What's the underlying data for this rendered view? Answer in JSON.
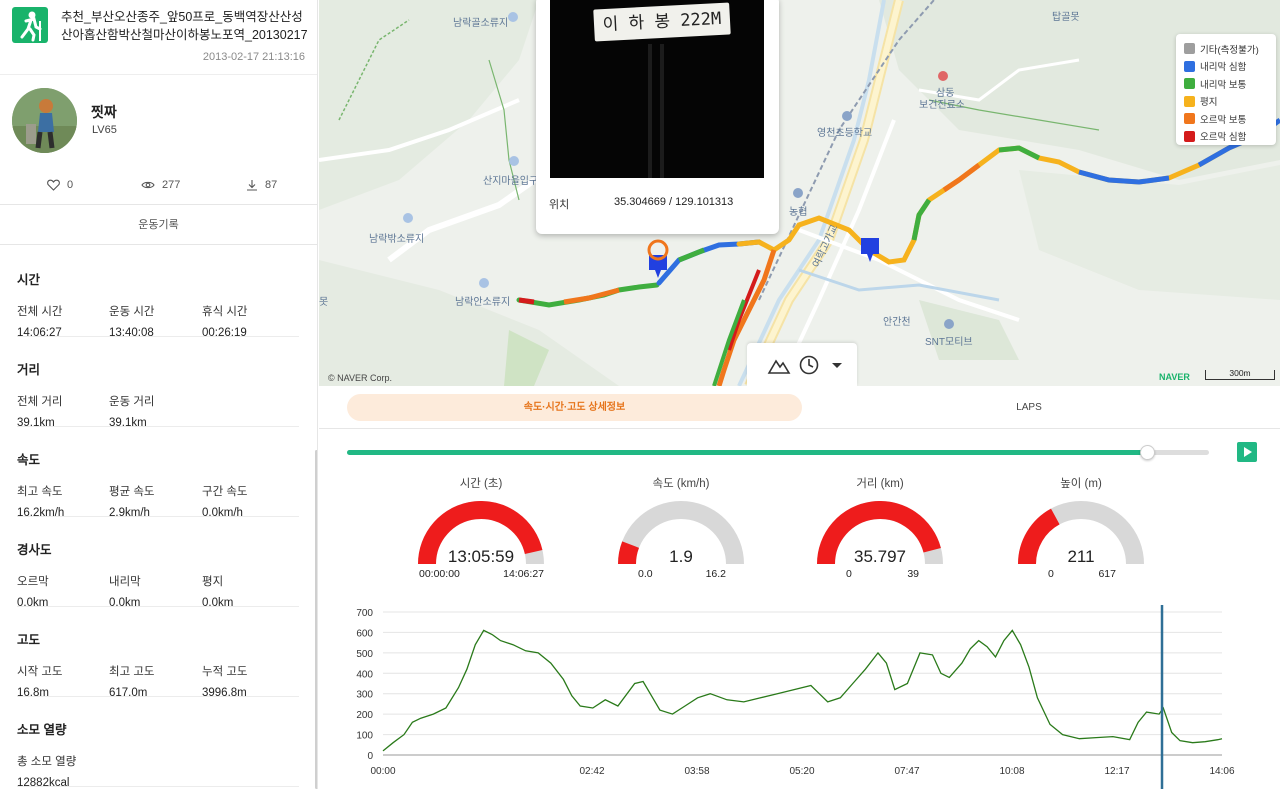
{
  "header": {
    "title": "추천_부산오산종주_앞50프로_동백역장산산성산아홉산함박산철마산이하봉노포역_20130217",
    "date": "2013-02-17 21:13:16"
  },
  "profile": {
    "name": "찟짜",
    "level": "LV65"
  },
  "stats": {
    "likes": "0",
    "views": "277",
    "downloads": "87"
  },
  "record_tab": "운동기록",
  "sections": [
    {
      "title": "시간",
      "items": [
        {
          "k": "전체 시간",
          "v": "14:06:27"
        },
        {
          "k": "운동 시간",
          "v": "13:40:08"
        },
        {
          "k": "휴식 시간",
          "v": "00:26:19"
        }
      ]
    },
    {
      "title": "거리",
      "items": [
        {
          "k": "전체 거리",
          "v": "39.1km"
        },
        {
          "k": "운동 거리",
          "v": "39.1km"
        }
      ]
    },
    {
      "title": "속도",
      "items": [
        {
          "k": "최고 속도",
          "v": "16.2km/h"
        },
        {
          "k": "평균 속도",
          "v": "2.9km/h"
        },
        {
          "k": "구간 속도",
          "v": "0.0km/h"
        }
      ]
    },
    {
      "title": "경사도",
      "items": [
        {
          "k": "오르막",
          "v": "0.0km"
        },
        {
          "k": "내리막",
          "v": "0.0km"
        },
        {
          "k": "평지",
          "v": "0.0km"
        }
      ]
    },
    {
      "title": "고도",
      "items": [
        {
          "k": "시작 고도",
          "v": "16.8m"
        },
        {
          "k": "최고 고도",
          "v": "617.0m"
        },
        {
          "k": "누적 고도",
          "v": "3996.8m"
        }
      ]
    },
    {
      "title": "소모 열량",
      "items": [
        {
          "k": "총 소모 열량",
          "v": "12882kcal"
        }
      ]
    }
  ],
  "map": {
    "popup": {
      "sign_text": "이 하 봉 222M",
      "loc_label": "위치",
      "loc_value": "35.304669 / 129.101313"
    },
    "labels": [
      {
        "text": "남락골소류지"
      },
      {
        "text": "산지마을입구"
      },
      {
        "text": "남락밖소류지"
      },
      {
        "text": "남락안소류지"
      },
      {
        "text": "영천초등학교"
      },
      {
        "text": "농협"
      },
      {
        "text": "삼동"
      },
      {
        "text": "보건진료소"
      },
      {
        "text": "안간천"
      },
      {
        "text": "SNT모티브"
      },
      {
        "text": "탑골못"
      },
      {
        "text": "여락고가교"
      },
      {
        "text": "못"
      }
    ],
    "legend": [
      {
        "label": "기타(측정불가)",
        "color": "#9e9e9e"
      },
      {
        "label": "내리막 심함",
        "color": "#2f6fe0"
      },
      {
        "label": "내리막 보통",
        "color": "#3fae3f"
      },
      {
        "label": "평지",
        "color": "#f6b21d"
      },
      {
        "label": "오르막 보통",
        "color": "#f0761c"
      },
      {
        "label": "오르막 심함",
        "color": "#d41b1b"
      }
    ],
    "copyright": "© NAVER Corp.",
    "brand": "NAVER",
    "scale": "300m"
  },
  "detail_tabs": {
    "active": "속도·시간·고도 상세정보",
    "other": "LAPS"
  },
  "playback": {
    "progress": 0.9285
  },
  "gauges": [
    {
      "title": "시간 (초)",
      "value": "13:05:59",
      "min": "00:00:00",
      "max": "14:06:27",
      "fraction": 0.9285
    },
    {
      "title": "속도 (km/h)",
      "value": "1.9",
      "min": "0.0",
      "max": "16.2",
      "fraction": 0.117
    },
    {
      "title": "거리 (km)",
      "value": "35.797",
      "min": "0",
      "max": "39",
      "fraction": 0.918
    },
    {
      "title": "높이 (m)",
      "value": "211",
      "min": "0",
      "max": "617",
      "fraction": 0.342
    }
  ],
  "chart_data": {
    "type": "line",
    "title": "",
    "xlabel": "",
    "ylabel": "",
    "ylim": [
      0,
      700
    ],
    "yticks": [
      "0",
      "100",
      "200",
      "300",
      "400",
      "500",
      "600",
      "700"
    ],
    "xticks": [
      "00:00",
      "02:42",
      "03:58",
      "05:20",
      "07:47",
      "10:08",
      "12:17",
      "14:06"
    ],
    "x_unit": "fraction_of_total_time",
    "grid": true,
    "cursor_x": 0.9285,
    "series": [
      {
        "color": "#2a7a1a",
        "points": [
          [
            0.0,
            20
          ],
          [
            0.012,
            60
          ],
          [
            0.025,
            100
          ],
          [
            0.035,
            160
          ],
          [
            0.045,
            180
          ],
          [
            0.06,
            200
          ],
          [
            0.075,
            230
          ],
          [
            0.09,
            330
          ],
          [
            0.1,
            420
          ],
          [
            0.11,
            540
          ],
          [
            0.12,
            610
          ],
          [
            0.13,
            590
          ],
          [
            0.14,
            560
          ],
          [
            0.155,
            540
          ],
          [
            0.17,
            510
          ],
          [
            0.185,
            500
          ],
          [
            0.2,
            450
          ],
          [
            0.215,
            370
          ],
          [
            0.225,
            290
          ],
          [
            0.235,
            240
          ],
          [
            0.25,
            230
          ],
          [
            0.265,
            270
          ],
          [
            0.28,
            240
          ],
          [
            0.3,
            350
          ],
          [
            0.31,
            360
          ],
          [
            0.32,
            290
          ],
          [
            0.33,
            220
          ],
          [
            0.345,
            200
          ],
          [
            0.36,
            240
          ],
          [
            0.375,
            280
          ],
          [
            0.39,
            300
          ],
          [
            0.41,
            270
          ],
          [
            0.43,
            260
          ],
          [
            0.45,
            280
          ],
          [
            0.47,
            300
          ],
          [
            0.49,
            320
          ],
          [
            0.51,
            340
          ],
          [
            0.52,
            300
          ],
          [
            0.53,
            260
          ],
          [
            0.545,
            280
          ],
          [
            0.56,
            350
          ],
          [
            0.575,
            420
          ],
          [
            0.59,
            500
          ],
          [
            0.6,
            450
          ],
          [
            0.61,
            320
          ],
          [
            0.625,
            350
          ],
          [
            0.64,
            500
          ],
          [
            0.655,
            490
          ],
          [
            0.665,
            400
          ],
          [
            0.675,
            380
          ],
          [
            0.69,
            450
          ],
          [
            0.7,
            520
          ],
          [
            0.71,
            560
          ],
          [
            0.72,
            530
          ],
          [
            0.73,
            480
          ],
          [
            0.74,
            560
          ],
          [
            0.75,
            610
          ],
          [
            0.76,
            540
          ],
          [
            0.77,
            430
          ],
          [
            0.78,
            280
          ],
          [
            0.795,
            150
          ],
          [
            0.81,
            100
          ],
          [
            0.83,
            80
          ],
          [
            0.85,
            85
          ],
          [
            0.87,
            90
          ],
          [
            0.89,
            75
          ],
          [
            0.9,
            160
          ],
          [
            0.91,
            210
          ],
          [
            0.925,
            200
          ],
          [
            0.93,
            230
          ],
          [
            0.94,
            110
          ],
          [
            0.95,
            70
          ],
          [
            0.965,
            60
          ],
          [
            0.98,
            65
          ],
          [
            0.995,
            75
          ],
          [
            1.0,
            80
          ]
        ]
      }
    ]
  }
}
